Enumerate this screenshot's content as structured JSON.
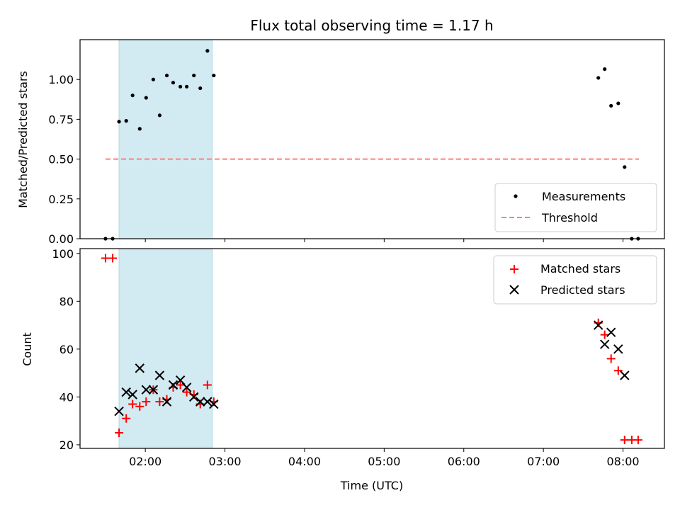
{
  "chart_data": {
    "type": "scatter",
    "title": "Flux total observing time = 1.17 h",
    "xlabel": "Time (UTC)",
    "xlim": [
      1.18,
      8.52
    ],
    "x_ticks": [
      {
        "value": 2,
        "label": "02:00"
      },
      {
        "value": 3,
        "label": "03:00"
      },
      {
        "value": 4,
        "label": "04:00"
      },
      {
        "value": 5,
        "label": "05:00"
      },
      {
        "value": 6,
        "label": "06:00"
      },
      {
        "value": 7,
        "label": "07:00"
      },
      {
        "value": 8,
        "label": "08:00"
      }
    ],
    "observing_window": [
      1.67,
      2.84
    ],
    "colors": {
      "window": "#add8e6",
      "measurements": "#000000",
      "threshold": "#ff7f7f",
      "matched": "#ff0000",
      "predicted": "#000000"
    },
    "top_panel": {
      "ylabel": "Matched/Predicted stars",
      "ylim": [
        0,
        1.25
      ],
      "y_ticks": [
        "0.00",
        "0.25",
        "0.50",
        "0.75",
        "1.00"
      ],
      "legend": {
        "position": "lower right",
        "entries": [
          "Measurements",
          "Threshold"
        ]
      },
      "threshold": {
        "value": 0.5,
        "x_range": [
          1.5,
          8.2
        ]
      },
      "measurements": [
        {
          "x": 1.5,
          "y": 0.0
        },
        {
          "x": 1.59,
          "y": 0.0
        },
        {
          "x": 1.67,
          "y": 0.735
        },
        {
          "x": 1.76,
          "y": 0.74
        },
        {
          "x": 1.84,
          "y": 0.9
        },
        {
          "x": 1.93,
          "y": 0.69
        },
        {
          "x": 2.01,
          "y": 0.885
        },
        {
          "x": 2.1,
          "y": 1.0
        },
        {
          "x": 2.18,
          "y": 0.775
        },
        {
          "x": 2.27,
          "y": 1.025
        },
        {
          "x": 2.35,
          "y": 0.98
        },
        {
          "x": 2.44,
          "y": 0.955
        },
        {
          "x": 2.52,
          "y": 0.955
        },
        {
          "x": 2.61,
          "y": 1.025
        },
        {
          "x": 2.69,
          "y": 0.945
        },
        {
          "x": 2.78,
          "y": 1.18
        },
        {
          "x": 2.86,
          "y": 1.025
        },
        {
          "x": 7.69,
          "y": 1.01
        },
        {
          "x": 7.77,
          "y": 1.065
        },
        {
          "x": 7.85,
          "y": 0.835
        },
        {
          "x": 7.94,
          "y": 0.85
        },
        {
          "x": 8.02,
          "y": 0.45
        },
        {
          "x": 8.11,
          "y": 0.0
        },
        {
          "x": 8.19,
          "y": 0.0
        }
      ]
    },
    "bottom_panel": {
      "ylabel": "Count",
      "ylim": [
        18.5,
        102
      ],
      "y_ticks": [
        "20",
        "40",
        "60",
        "80",
        "100"
      ],
      "legend": {
        "position": "upper right",
        "entries": [
          "Matched stars",
          "Predicted stars"
        ]
      },
      "matched": [
        {
          "x": 1.5,
          "y": 98
        },
        {
          "x": 1.59,
          "y": 98
        },
        {
          "x": 1.67,
          "y": 25
        },
        {
          "x": 1.76,
          "y": 31
        },
        {
          "x": 1.84,
          "y": 37
        },
        {
          "x": 1.93,
          "y": 36
        },
        {
          "x": 2.01,
          "y": 38
        },
        {
          "x": 2.1,
          "y": 43
        },
        {
          "x": 2.18,
          "y": 38
        },
        {
          "x": 2.27,
          "y": 39
        },
        {
          "x": 2.35,
          "y": 44
        },
        {
          "x": 2.44,
          "y": 45
        },
        {
          "x": 2.52,
          "y": 42
        },
        {
          "x": 2.61,
          "y": 41
        },
        {
          "x": 2.69,
          "y": 37
        },
        {
          "x": 2.78,
          "y": 45
        },
        {
          "x": 2.86,
          "y": 38
        },
        {
          "x": 7.69,
          "y": 71
        },
        {
          "x": 7.77,
          "y": 66
        },
        {
          "x": 7.85,
          "y": 56
        },
        {
          "x": 7.94,
          "y": 51
        },
        {
          "x": 8.02,
          "y": 22
        },
        {
          "x": 8.11,
          "y": 22
        },
        {
          "x": 8.19,
          "y": 22
        }
      ],
      "predicted": [
        {
          "x": 1.67,
          "y": 34
        },
        {
          "x": 1.76,
          "y": 42
        },
        {
          "x": 1.84,
          "y": 41
        },
        {
          "x": 1.93,
          "y": 52
        },
        {
          "x": 2.01,
          "y": 43
        },
        {
          "x": 2.1,
          "y": 43
        },
        {
          "x": 2.18,
          "y": 49
        },
        {
          "x": 2.27,
          "y": 38
        },
        {
          "x": 2.35,
          "y": 45
        },
        {
          "x": 2.44,
          "y": 47
        },
        {
          "x": 2.52,
          "y": 44
        },
        {
          "x": 2.61,
          "y": 40
        },
        {
          "x": 2.69,
          "y": 38
        },
        {
          "x": 2.78,
          "y": 38
        },
        {
          "x": 2.86,
          "y": 37
        },
        {
          "x": 7.69,
          "y": 70
        },
        {
          "x": 7.77,
          "y": 62
        },
        {
          "x": 7.85,
          "y": 67
        },
        {
          "x": 7.94,
          "y": 60
        },
        {
          "x": 8.02,
          "y": 49
        }
      ]
    }
  }
}
